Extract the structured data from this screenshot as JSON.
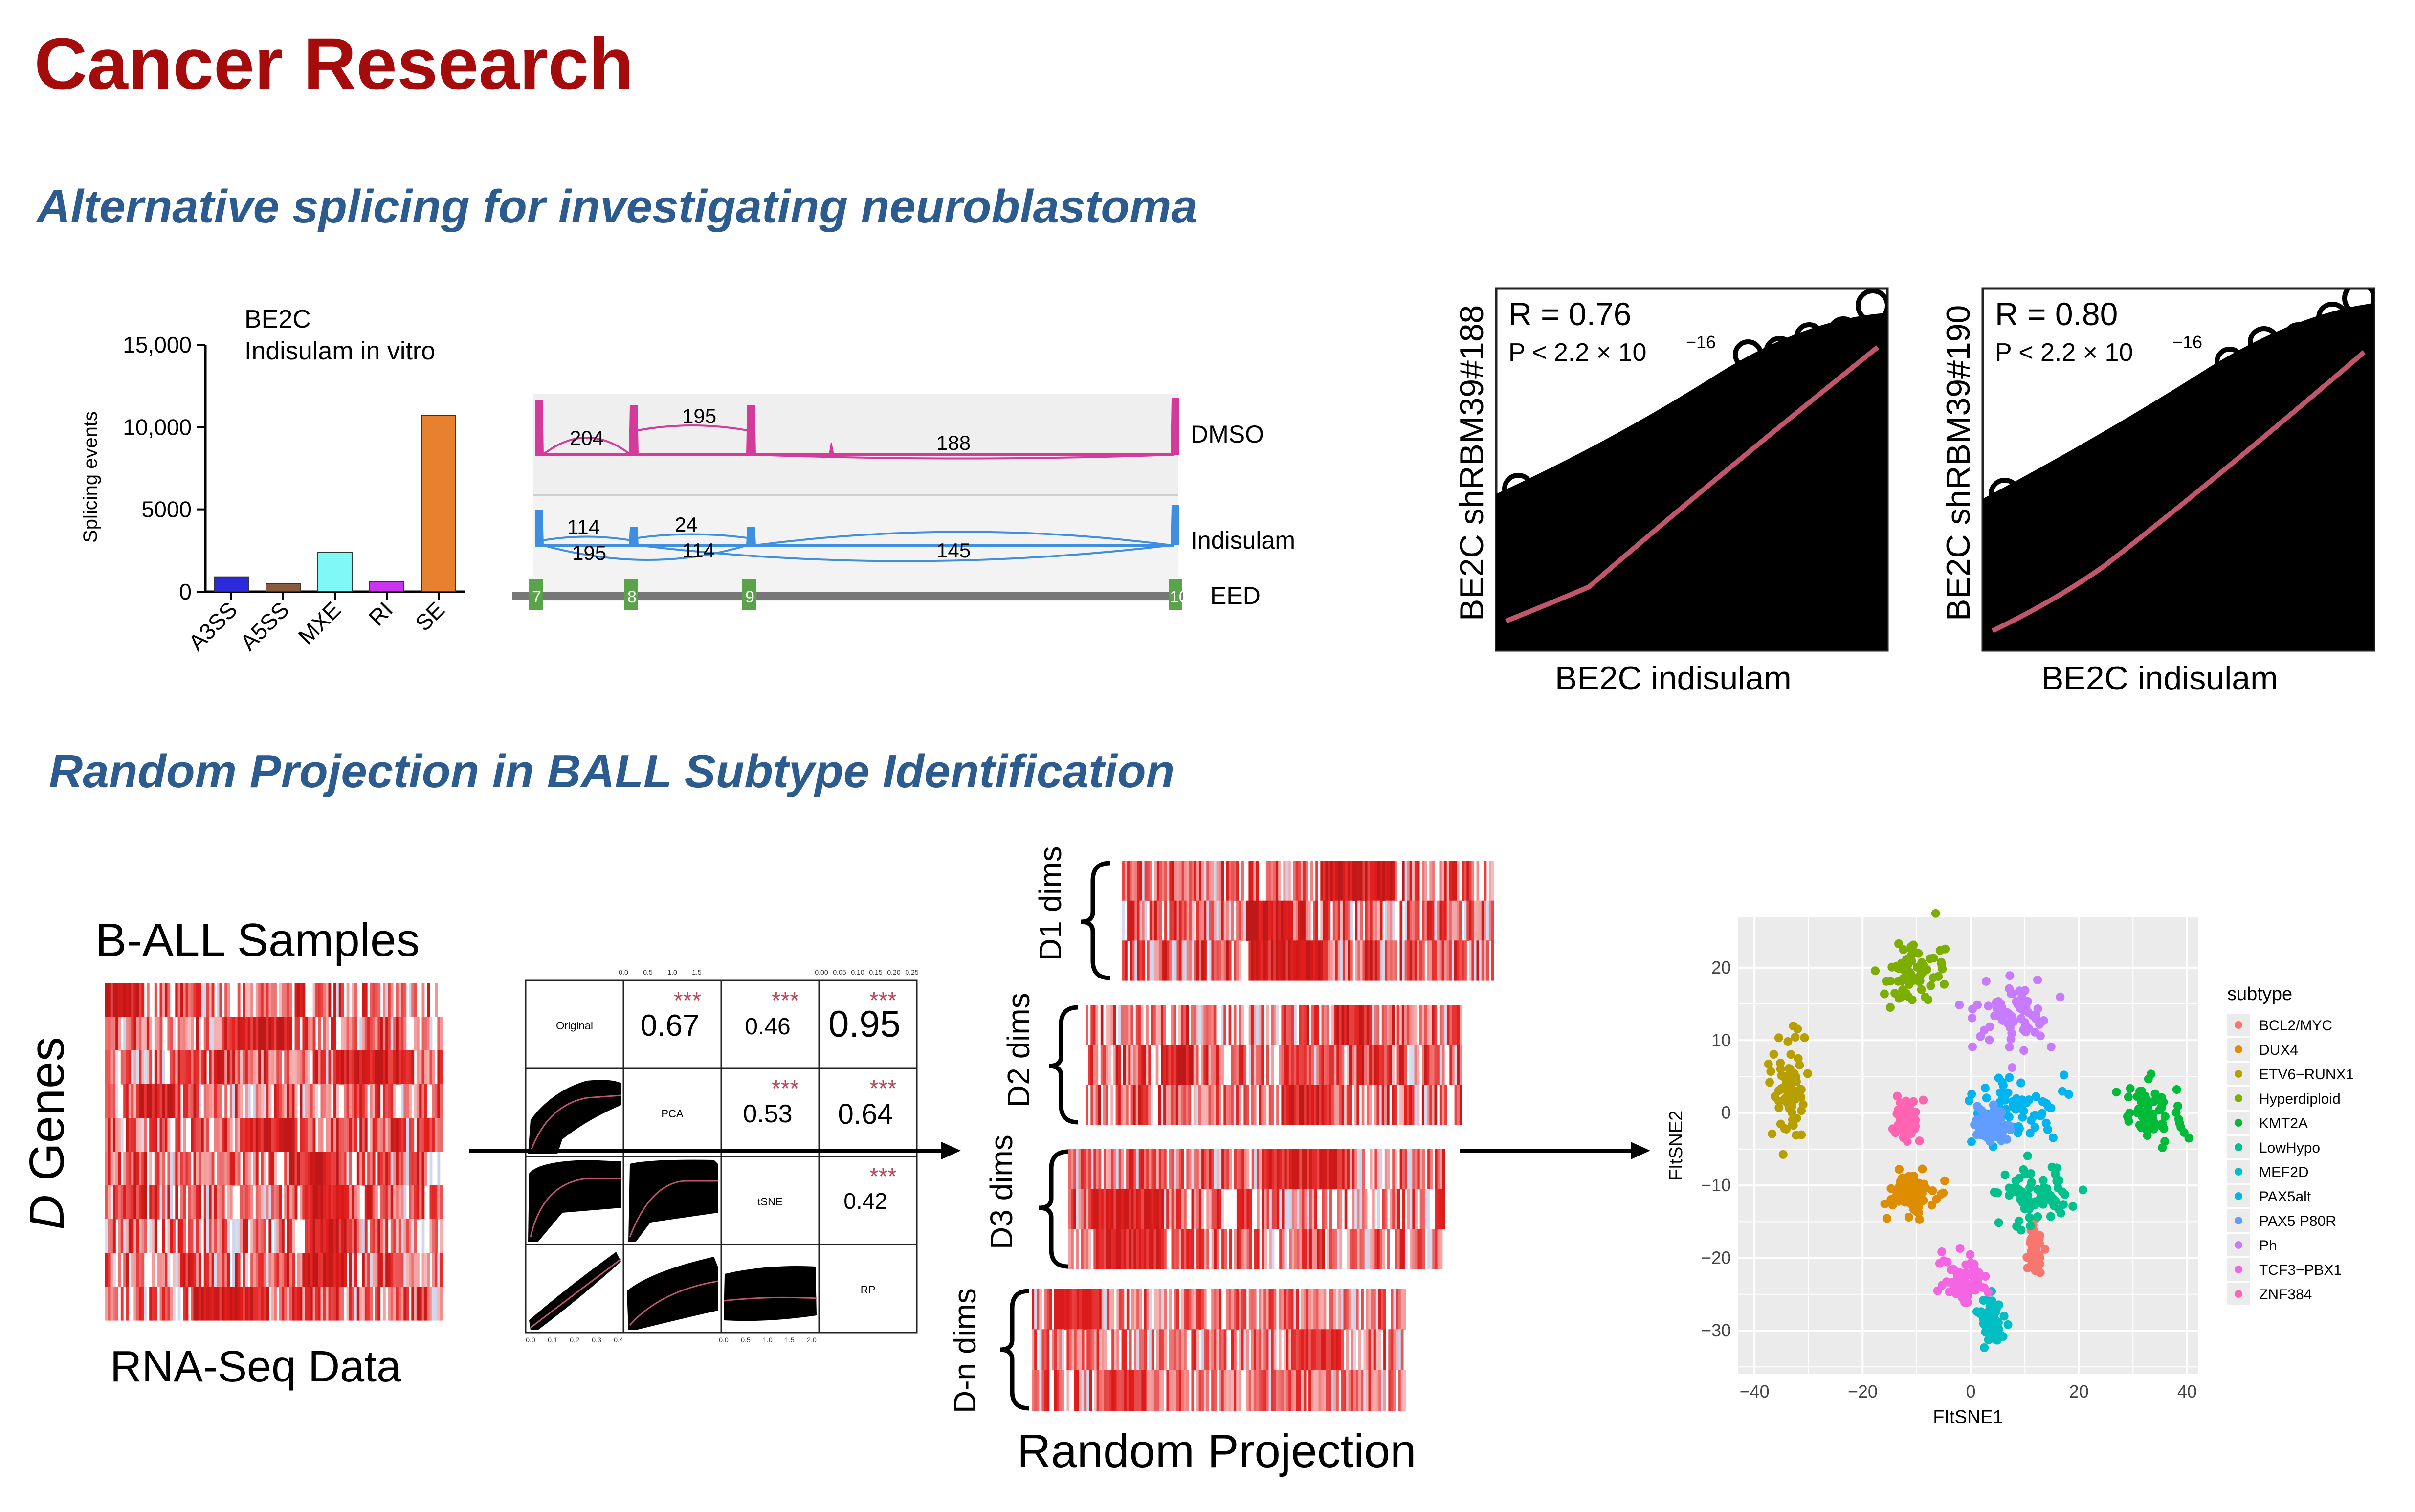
{
  "title": "Cancer Research",
  "section1": "Alternative splicing for investigating neuroblastoma",
  "section2": "Random Projection in BALL Subtype Identification",
  "bar": {
    "line1": "BE2C",
    "line2": "Indisulam in vitro",
    "ylabel": "Splicing events",
    "yticks": [
      "15,000",
      "10,000",
      "5000",
      "0"
    ]
  },
  "sashimi": {
    "dmso_label": "DMSO",
    "indisulam_label": "Indisulam",
    "gene_label": "EED",
    "exons": [
      "7",
      "8",
      "9",
      "10"
    ],
    "dmso_counts": [
      "204",
      "195",
      "188"
    ],
    "ind_counts": [
      "114",
      "24",
      "195",
      "114",
      "145"
    ]
  },
  "scatter1": {
    "r": "R = 0.76",
    "p": "P < 2.2 × 10",
    "exp": "−16",
    "ylabel": "BE2C shRBM39#188",
    "xlabel": "BE2C indisulam"
  },
  "scatter2": {
    "r": "R = 0.80",
    "p": "P < 2.2 × 10",
    "exp": "−16",
    "ylabel": "BE2C shRBM39#190",
    "xlabel": "BE2C indisulam"
  },
  "ball": {
    "samples": "B-ALL Samples",
    "genes_italic": "D",
    "genes": " Genes",
    "rnaseq": "RNA-Seq Data",
    "rp_title": "Random Projection",
    "dims": [
      "D1 dims",
      "D2 dims",
      "D3 dims",
      "D-n dims"
    ]
  },
  "pairs": {
    "diag": [
      "Original",
      "PCA",
      "tSNE",
      "RP"
    ],
    "corr": [
      "0.67",
      "0.46",
      "0.95",
      "0.53",
      "0.64",
      "0.42"
    ],
    "stars": "***",
    "top_ticks": [
      "0.0",
      "0.5",
      "1.0",
      "1.5",
      "0.00",
      "0.05",
      "0.10",
      "0.15",
      "0.20",
      "0.25"
    ],
    "bottom_ticks": [
      "0.0",
      "0.1",
      "0.2",
      "0.3",
      "0.4",
      "0.0",
      "0.5",
      "1.0",
      "1.5",
      "2.0"
    ]
  },
  "chart_data": [
    {
      "type": "bar",
      "categories": [
        "A3SS",
        "A5SS",
        "MXE",
        "RI",
        "SE"
      ],
      "values": [
        900,
        500,
        2400,
        600,
        10700
      ],
      "colors": [
        "#2b2bdc",
        "#8a5a3c",
        "#80f8f8",
        "#cc33ee",
        "#e8812f"
      ],
      "ylabel": "Splicing events",
      "ylim": [
        0,
        15000
      ]
    },
    {
      "type": "scatter",
      "xlabel": "FItSNE1",
      "ylabel": "FItSNE2",
      "xlim": [
        -43,
        42
      ],
      "ylim": [
        -36,
        27
      ],
      "xticks": [
        "−40",
        "−20",
        "0",
        "20",
        "40"
      ],
      "yticks": [
        "20",
        "10",
        "0",
        "−10",
        "−20",
        "−30"
      ],
      "legend_title": "subtype",
      "legend_position": "right",
      "series": [
        {
          "name": "BCL2/MYC",
          "color": "#f8766d",
          "center": [
            12,
            -19
          ],
          "spread": [
            1,
            3
          ]
        },
        {
          "name": "DUX4",
          "color": "#de8c00",
          "center": [
            -11,
            -11
          ],
          "spread": [
            4,
            3
          ]
        },
        {
          "name": "ETV6−RUNX1",
          "color": "#b79f00",
          "center": [
            -34,
            3
          ],
          "spread": [
            3,
            6
          ]
        },
        {
          "name": "Hyperdiploid",
          "color": "#7cae00",
          "center": [
            -11,
            19
          ],
          "spread": [
            6,
            4
          ]
        },
        {
          "name": "KMT2A",
          "color": "#00ba38",
          "center": [
            34,
            0
          ],
          "spread": [
            5,
            4
          ]
        },
        {
          "name": "LowHypo",
          "color": "#00c08b",
          "center": [
            12,
            -12
          ],
          "spread": [
            6,
            4
          ]
        },
        {
          "name": "MEF2D",
          "color": "#00bfc4",
          "center": [
            4,
            -29
          ],
          "spread": [
            2,
            3
          ]
        },
        {
          "name": "PAX5alt",
          "color": "#00b4f0",
          "center": [
            7,
            0
          ],
          "spread": [
            9,
            4
          ]
        },
        {
          "name": "PAX5 P80R",
          "color": "#619cff",
          "center": [
            4,
            -2
          ],
          "spread": [
            3,
            2
          ]
        },
        {
          "name": "Ph",
          "color": "#c77cff",
          "center": [
            7,
            13
          ],
          "spread": [
            7,
            5
          ]
        },
        {
          "name": "TCF3−PBX1",
          "color": "#f564e3",
          "center": [
            -1,
            -23
          ],
          "spread": [
            4,
            3
          ]
        },
        {
          "name": "ZNF384",
          "color": "#ff64b0",
          "center": [
            -12,
            -1
          ],
          "spread": [
            2,
            3
          ]
        }
      ]
    }
  ]
}
